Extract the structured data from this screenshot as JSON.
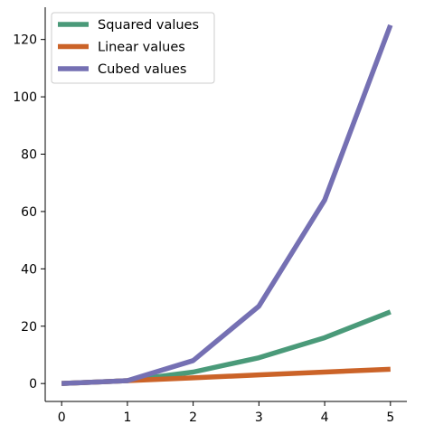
{
  "chart_data": {
    "type": "line",
    "x": [
      0,
      1,
      2,
      3,
      4,
      5
    ],
    "series": [
      {
        "name": "Squared values",
        "values": [
          0,
          1,
          4,
          9,
          16,
          25
        ],
        "color": "#4a9a79"
      },
      {
        "name": "Linear values",
        "values": [
          0,
          1,
          2,
          3,
          4,
          5
        ],
        "color": "#cb6328"
      },
      {
        "name": "Cubed values",
        "values": [
          0,
          1,
          8,
          27,
          64,
          125
        ],
        "color": "#7570b3"
      }
    ],
    "xlim": [
      -0.25,
      5.25
    ],
    "ylim": [
      -6.25,
      131.25
    ],
    "xticks": [
      0,
      1,
      2,
      3,
      4,
      5
    ],
    "yticks": [
      0,
      20,
      40,
      60,
      80,
      100,
      120
    ],
    "title": "",
    "xlabel": "",
    "ylabel": "",
    "grid": false,
    "legend_position": "top-left"
  }
}
